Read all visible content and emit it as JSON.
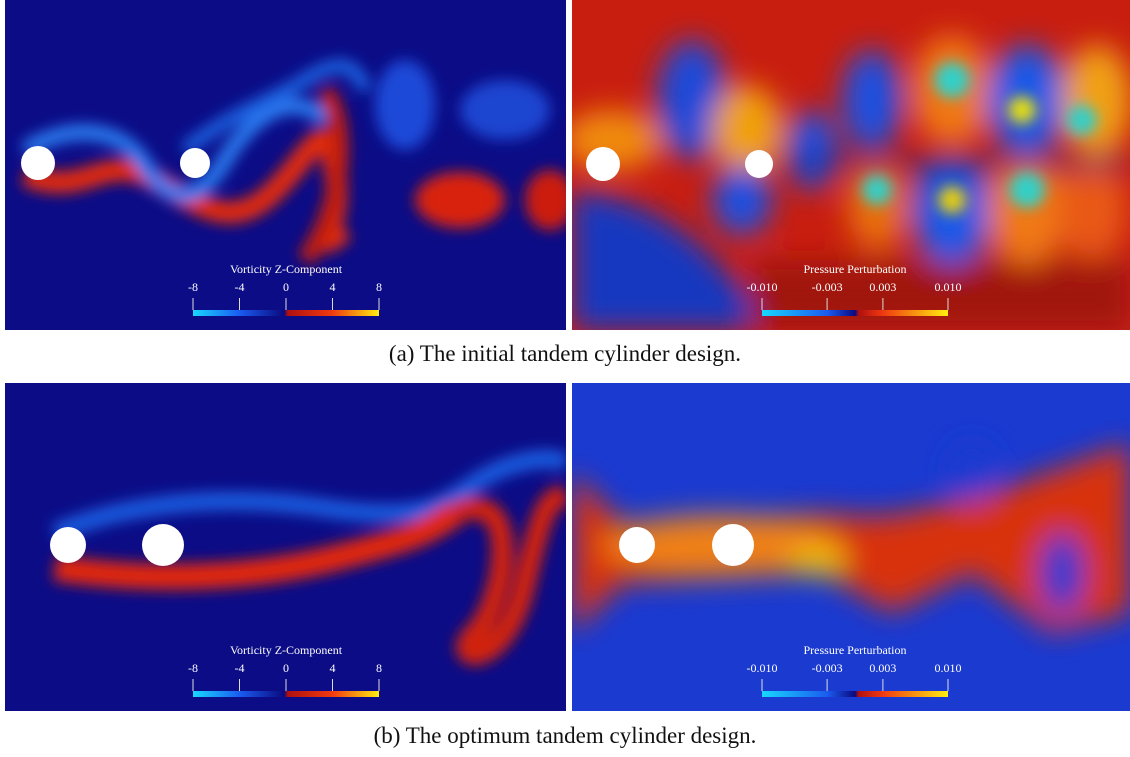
{
  "figure": {
    "panels": [
      {
        "caption": "(a) The initial tandem cylinder design.",
        "images": [
          {
            "colorbar": {
              "title": "Vorticity Z-Component",
              "ticks": [
                "-8",
                "-4",
                "0",
                "4",
                "8"
              ]
            }
          },
          {
            "colorbar": {
              "title": "Pressure Perturbation",
              "ticks": [
                "-0.010",
                "-0.003",
                "0.003",
                "0.010"
              ]
            }
          }
        ]
      },
      {
        "caption": "(b) The optimum tandem cylinder design.",
        "images": [
          {
            "colorbar": {
              "title": "Vorticity Z-Component",
              "ticks": [
                "-8",
                "-4",
                "0",
                "4",
                "8"
              ]
            }
          },
          {
            "colorbar": {
              "title": "Pressure Perturbation",
              "ticks": [
                "-0.010",
                "-0.003",
                "0.003",
                "0.010"
              ]
            }
          }
        ]
      }
    ]
  }
}
